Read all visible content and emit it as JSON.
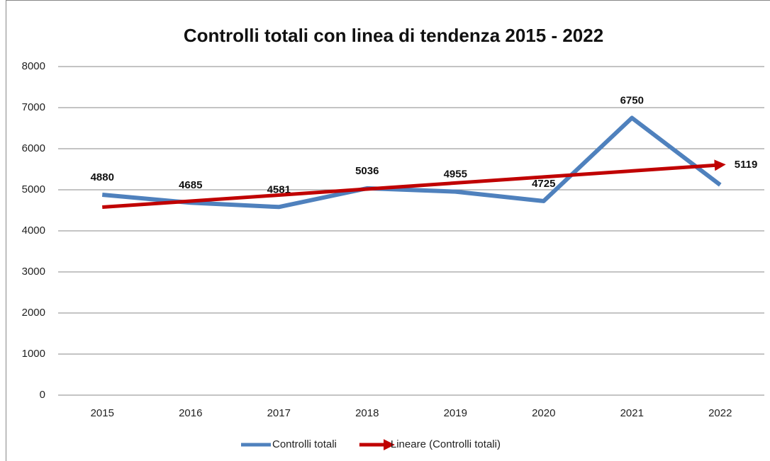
{
  "chart_data": {
    "type": "line",
    "title": "Controlli totali con linea di tendenza 2015 - 2022",
    "categories": [
      "2015",
      "2016",
      "2017",
      "2018",
      "2019",
      "2020",
      "2021",
      "2022"
    ],
    "series": [
      {
        "name": "Controlli totali",
        "color": "#4f81bd",
        "values": [
          4880,
          4685,
          4581,
          5036,
          4955,
          4725,
          6750,
          5119
        ],
        "data_labels": true
      },
      {
        "name": "Lineare (Controlli totali)",
        "color": "#c00000",
        "values": [
          4577,
          4724,
          4871,
          5018,
          5165,
          5312,
          5459,
          5606
        ],
        "trendline": true
      }
    ],
    "ylim": [
      0,
      8000
    ],
    "yticks": [
      0,
      1000,
      2000,
      3000,
      4000,
      5000,
      6000,
      7000,
      8000
    ],
    "grid": true,
    "legend": "bottom"
  }
}
